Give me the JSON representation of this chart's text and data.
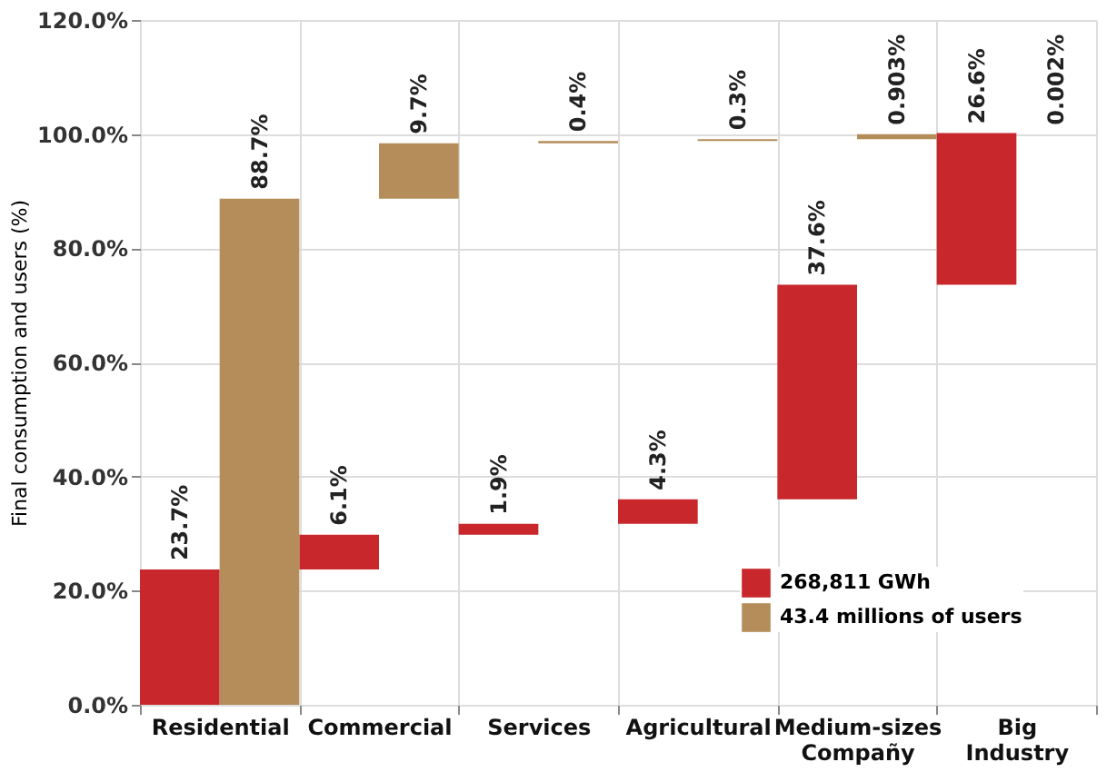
{
  "chart_data": {
    "type": "bar",
    "ylabel": "Final consumption and users (%)",
    "categories": [
      "Residential",
      "Commercial",
      "Services",
      "Agricultural",
      "Medium-sizes Compañy",
      "Big Industry"
    ],
    "series": [
      {
        "name": "268,811 GWh",
        "color": "#c8282c",
        "values": [
          23.7,
          6.1,
          1.9,
          4.3,
          37.6,
          26.6
        ],
        "base": [
          0,
          23.7,
          29.8,
          31.7,
          36.0,
          73.6
        ],
        "value_labels": [
          "23.7%",
          "6.1%",
          "1.9%",
          "4.3%",
          "37.6%",
          "26.6%"
        ]
      },
      {
        "name": "43.4 millions of users",
        "color": "#b58d5a",
        "values": [
          88.7,
          9.7,
          0.4,
          0.3,
          0.903,
          0.002
        ],
        "base": [
          0,
          88.7,
          98.4,
          98.8,
          99.1,
          100.0
        ],
        "value_labels": [
          "88.7%",
          "9.7%",
          "0.4%",
          "0.3%",
          "0.903%",
          "0.002%"
        ]
      }
    ],
    "ylim": [
      0,
      120
    ],
    "yticks": [
      {
        "value": 0,
        "label": "0.0%"
      },
      {
        "value": 20,
        "label": "20.0%"
      },
      {
        "value": 40,
        "label": "40.0%"
      },
      {
        "value": 60,
        "label": "60.0%"
      },
      {
        "value": 80,
        "label": "80.0%"
      },
      {
        "value": 100,
        "label": "100.0%"
      },
      {
        "value": 120,
        "label": "120.0%"
      }
    ],
    "grid": true,
    "legend": "bottom right"
  }
}
